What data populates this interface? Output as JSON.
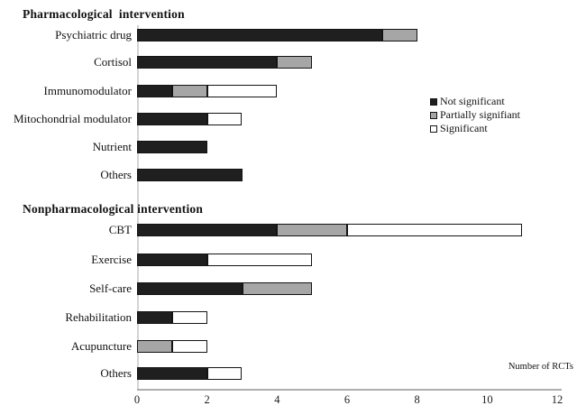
{
  "chart_data": {
    "type": "bar",
    "orientation": "horizontal",
    "stacked": true,
    "xlabel": "Number of RCTs",
    "xlim": [
      0,
      12
    ],
    "x_ticks": [
      "0",
      "2",
      "4",
      "6",
      "8",
      "10",
      "12"
    ],
    "grid": false,
    "legend_position": "right-middle",
    "legend": [
      {
        "label": "Not significant",
        "color": "#1f1f1f"
      },
      {
        "label": "Partially signifiant",
        "color": "#a6a6a6"
      },
      {
        "label": "Significant",
        "color": "#ffffff"
      }
    ],
    "series_order": [
      "Not significant",
      "Partially signifiant",
      "Significant"
    ],
    "sections": [
      {
        "title": "Pharmacological  intervention",
        "rows": [
          {
            "label": "Psychiatric drug",
            "values": [
              7,
              1,
              0
            ]
          },
          {
            "label": "Cortisol",
            "values": [
              4,
              1,
              0
            ]
          },
          {
            "label": "Immunomodulator",
            "values": [
              1,
              1,
              2
            ]
          },
          {
            "label": "Mitochondrial modulator",
            "values": [
              2,
              0,
              1
            ]
          },
          {
            "label": "Nutrient",
            "values": [
              2,
              0,
              0
            ]
          },
          {
            "label": "Others",
            "values": [
              3,
              0,
              0
            ]
          }
        ]
      },
      {
        "title": "Nonpharmacological intervention",
        "rows": [
          {
            "label": "CBT",
            "values": [
              4,
              2,
              5
            ]
          },
          {
            "label": "Exercise",
            "values": [
              2,
              0,
              3
            ]
          },
          {
            "label": "Self-care",
            "values": [
              3,
              2,
              0
            ]
          },
          {
            "label": "Rehabilitation",
            "values": [
              1,
              0,
              1
            ]
          },
          {
            "label": "Acupuncture",
            "values": [
              0,
              1,
              1
            ]
          },
          {
            "label": "Others",
            "values": [
              2,
              0,
              1
            ]
          }
        ]
      }
    ]
  }
}
